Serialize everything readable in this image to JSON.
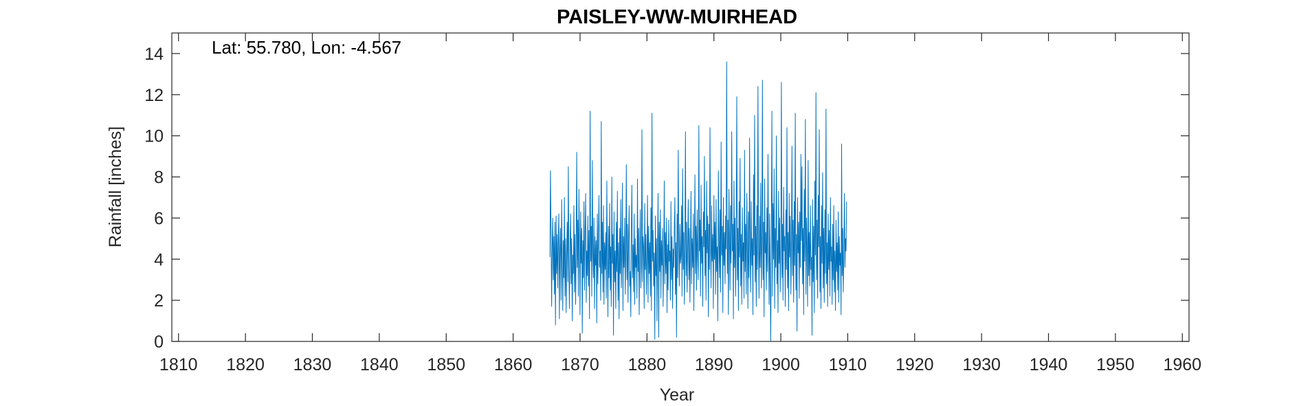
{
  "chart_data": {
    "type": "line",
    "title": "PAISLEY-WW-MUIRHEAD",
    "annotation": "Lat: 55.780, Lon: -4.567",
    "xlabel": "Year",
    "ylabel": "Rainfall [inches]",
    "xlim": [
      1809,
      1961
    ],
    "ylim": [
      0,
      15
    ],
    "xticks": [
      1810,
      1820,
      1830,
      1840,
      1850,
      1860,
      1870,
      1880,
      1890,
      1900,
      1910,
      1920,
      1930,
      1940,
      1950,
      1960
    ],
    "xtick_labels": [
      "1810",
      "1820",
      "1830",
      "1840",
      "1850",
      "1860",
      "1870",
      "1880",
      "1890",
      "1900",
      "1910",
      "1920",
      "1930",
      "1940",
      "1950",
      "1960"
    ],
    "yticks": [
      0,
      2,
      4,
      6,
      8,
      10,
      12,
      14
    ],
    "ytick_labels": [
      "0",
      "2",
      "4",
      "6",
      "8",
      "10",
      "12",
      "14"
    ],
    "grid": false,
    "series": [
      {
        "color": "#0072BD",
        "x_start": 1865.5,
        "x_step": 0.0833333,
        "values": [
          4.1,
          8.3,
          5.2,
          1.7,
          4.6,
          6.0,
          3.0,
          5.1,
          2.3,
          5.8,
          0.8,
          6.1,
          3.3,
          5.2,
          2.6,
          4.9,
          6.2,
          1.1,
          4.4,
          5.5,
          2.0,
          6.9,
          3.6,
          1.5,
          4.9,
          3.1,
          7.0,
          2.2,
          5.0,
          1.4,
          4.1,
          5.8,
          2.9,
          8.5,
          3.7,
          1.6,
          4.5,
          6.2,
          2.8,
          5.0,
          1.0,
          4.2,
          3.3,
          6.6,
          2.4,
          5.2,
          1.8,
          4.4,
          9.2,
          3.6,
          5.9,
          2.2,
          7.4,
          4.7,
          1.3,
          6.3,
          3.8,
          5.5,
          0.4,
          4.9,
          3.1,
          6.8,
          2.5,
          5.1,
          7.2,
          1.9,
          4.4,
          3.2,
          6.1,
          2.7,
          5.4,
          1.1,
          11.2,
          3.9,
          5.6,
          2.2,
          8.8,
          4.3,
          3.1,
          6.0,
          1.6,
          5.1,
          3.7,
          4.9,
          0.9,
          6.2,
          2.8,
          5.2,
          7.1,
          3.6,
          4.4,
          2.0,
          10.7,
          3.3,
          5.8,
          2.4,
          6.6,
          1.8,
          4.8,
          3.5,
          5.3,
          2.1,
          7.8,
          4.0,
          1.2,
          5.6,
          3.1,
          6.7,
          2.5,
          4.6,
          1.7,
          8.0,
          3.8,
          5.2,
          0.3,
          6.3,
          2.9,
          4.4,
          1.6,
          5.8,
          3.4,
          7.3,
          2.0,
          4.8,
          1.1,
          5.5,
          3.3,
          6.9,
          2.6,
          4.2,
          7.7,
          1.5,
          5.1,
          3.6,
          6.0,
          2.3,
          4.5,
          8.6,
          3.0,
          5.7,
          1.9,
          4.8,
          6.6,
          2.7,
          3.4,
          1.2,
          5.3,
          7.6,
          3.1,
          4.7,
          2.4,
          6.2,
          1.8,
          5.0,
          3.6,
          4.2,
          2.1,
          7.9,
          3.4,
          5.5,
          1.3,
          4.4,
          6.4,
          2.6,
          3.8,
          10.3,
          2.9,
          5.1,
          4.6,
          1.6,
          6.7,
          3.5,
          5.2,
          2.3,
          4.0,
          7.1,
          1.9,
          5.6,
          3.3,
          4.8,
          2.2,
          6.5,
          1.5,
          11.1,
          3.9,
          5.4,
          2.7,
          4.3,
          0.1,
          6.1,
          3.2,
          5.0,
          1.0,
          4.6,
          7.2,
          0.2,
          5.8,
          3.4,
          6.4,
          2.1,
          4.9,
          3.7,
          5.5,
          1.7,
          4.2,
          7.8,
          2.8,
          5.3,
          3.3,
          6.0,
          1.4,
          4.7,
          2.5,
          5.9,
          3.9,
          4.4,
          2.0,
          6.8,
          3.0,
          5.1,
          1.6,
          4.5,
          3.6,
          5.4,
          7.0,
          2.3,
          4.8,
          0.2,
          6.2,
          3.1,
          9.3,
          4.5,
          2.7,
          5.7,
          3.8,
          4.1,
          6.6,
          2.2,
          8.4,
          3.5,
          5.3,
          1.8,
          4.9,
          10.2,
          3.2,
          5.8,
          2.4,
          4.6,
          6.9,
          3.0,
          5.5,
          1.9,
          4.3,
          7.3,
          2.8,
          5.0,
          3.6,
          6.2,
          1.5,
          4.7,
          8.1,
          3.3,
          5.6,
          2.5,
          6.4,
          4.1,
          3.0,
          10.5,
          4.4,
          5.9,
          2.2,
          7.6,
          3.8,
          5.1,
          1.7,
          6.3,
          4.6,
          9.0,
          3.2,
          5.4,
          2.0,
          7.8,
          4.3,
          6.1,
          1.2,
          5.7,
          3.5,
          10.4,
          4.8,
          2.6,
          6.6,
          3.9,
          5.2,
          1.6,
          7.1,
          4.0,
          5.8,
          2.3,
          6.9,
          3.4,
          4.6,
          1.0,
          8.3,
          5.0,
          3.1,
          6.4,
          2.4,
          9.7,
          4.2,
          5.6,
          1.4,
          7.0,
          3.7,
          5.3,
          2.8,
          6.1,
          4.5,
          13.6,
          3.3,
          5.9,
          1.3,
          7.4,
          4.9,
          2.5,
          6.6,
          3.8,
          10.2,
          4.4,
          5.7,
          1.1,
          7.8,
          3.6,
          6.0,
          2.2,
          4.7,
          11.9,
          3.0,
          5.5,
          1.5,
          6.8,
          4.1,
          8.9,
          2.7,
          5.2,
          1.8,
          6.5,
          3.9,
          4.8,
          2.1,
          9.3,
          3.4,
          5.7,
          2.3,
          7.2,
          4.6,
          1.6,
          6.3,
          3.1,
          9.9,
          4.5,
          2.4,
          6.8,
          3.7,
          5.0,
          1.3,
          8.1,
          4.2,
          11.0,
          2.9,
          5.6,
          1.7,
          6.6,
          3.5,
          12.4,
          4.8,
          2.1,
          6.1,
          3.6,
          7.7,
          2.6,
          4.9,
          12.7,
          3.0,
          5.8,
          1.2,
          7.9,
          4.3,
          5.3,
          2.5,
          6.5,
          3.4,
          9.1,
          4.7,
          1.8,
          6.2,
          3.3,
          0.0,
          5.4,
          11.2,
          2.2,
          6.7,
          4.0,
          8.4,
          1.6,
          5.5,
          3.6,
          10.0,
          2.8,
          4.9,
          1.4,
          7.3,
          3.8,
          6.0,
          2.4,
          4.6,
          12.6,
          3.1,
          5.7,
          2.0,
          7.5,
          4.4,
          5.1,
          1.7,
          6.4,
          3.5,
          10.4,
          2.6,
          5.3,
          1.5,
          7.2,
          4.1,
          6.1,
          2.3,
          4.7,
          9.5,
          3.2,
          5.9,
          1.9,
          6.8,
          3.7,
          11.1,
          2.5,
          5.2,
          0.5,
          7.0,
          4.3,
          5.8,
          2.1,
          6.3,
          3.6,
          9.1,
          4.9,
          8.5,
          2.8,
          5.5,
          1.3,
          7.4,
          3.9,
          10.8,
          2.3,
          6.0,
          4.6,
          1.7,
          8.8,
          3.2,
          5.3,
          2.7,
          6.6,
          3.5,
          4.1,
          0.3,
          6.9,
          2.9,
          5.6,
          1.4,
          7.8,
          4.2,
          12.1,
          3.0,
          5.9,
          2.1,
          7.1,
          4.6,
          10.3,
          2.4,
          5.1,
          1.6,
          6.6,
          3.8,
          8.2,
          2.6,
          5.5,
          1.9,
          6.4,
          3.3,
          11.3,
          2.8,
          4.8,
          1.7,
          6.2,
          3.5,
          5.4,
          2.2,
          7.0,
          3.9,
          4.6,
          1.8,
          5.7,
          3.0,
          6.6,
          2.4,
          4.4,
          1.5,
          5.9,
          3.4,
          4.8,
          2.5,
          6.3,
          1.9,
          5.1,
          3.7,
          4.3,
          1.3,
          9.6,
          3.2,
          5.5,
          2.4,
          4.0,
          7.2,
          3.6,
          5.0,
          4.4,
          6.8
        ]
      }
    ]
  }
}
